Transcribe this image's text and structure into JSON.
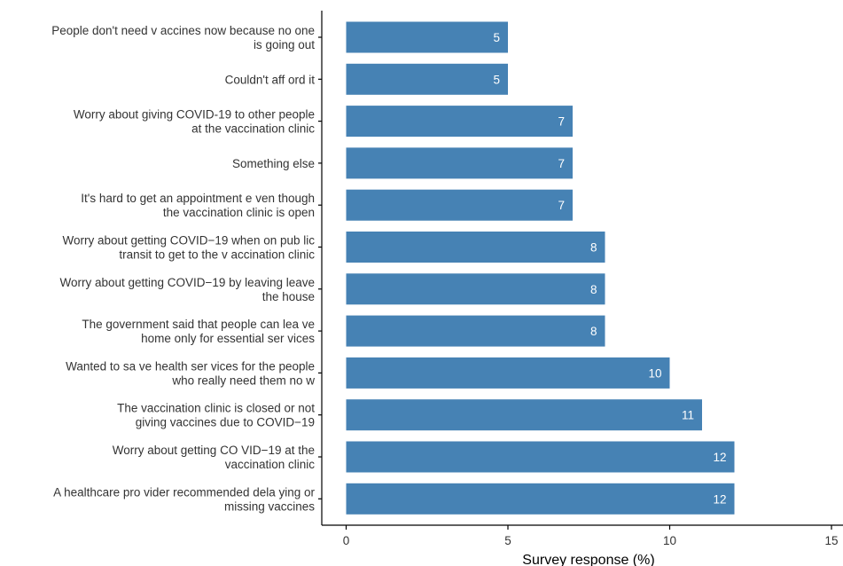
{
  "chart_data": {
    "type": "bar",
    "orientation": "horizontal",
    "categories": [
      [
        "People don't need v accines now because no one",
        "is going out"
      ],
      [
        "Couldn't aff ord it"
      ],
      [
        "Worry about giving COVID-19 to other people",
        "at the vaccination clinic"
      ],
      [
        "Something else"
      ],
      [
        "It's hard to get an appointment e ven though",
        "the vaccination clinic is open"
      ],
      [
        "Worry about getting COVID−19 when on pub lic",
        "transit to get to the v accination clinic"
      ],
      [
        "Worry about getting COVID−19 by leaving leave",
        "the house"
      ],
      [
        "The government said that people can lea ve",
        "home only for essential ser vices"
      ],
      [
        "Wanted to sa ve health ser vices for the people",
        "who really need them no w"
      ],
      [
        "The vaccination clinic is closed or not",
        "giving vaccines due to COVID−19"
      ],
      [
        "Worry about getting CO VID−19 at the",
        "vaccination clinic"
      ],
      [
        "A healthcare pro vider recommended dela ying or",
        "missing vaccines"
      ]
    ],
    "values": [
      5,
      5,
      7,
      7,
      7,
      8,
      8,
      8,
      10,
      11,
      12,
      12
    ],
    "value_labels": [
      "5",
      "5",
      "7",
      "7",
      "7",
      "8",
      "8",
      "8",
      "10",
      "11",
      "12",
      "12"
    ],
    "xlabel": "Survey response (%)",
    "ylabel": "",
    "xlim": [
      0,
      15
    ],
    "xticks": [
      0,
      5,
      10,
      15
    ],
    "xtick_labels": [
      "0",
      "5",
      "10",
      "15"
    ],
    "grid": false,
    "bar_color": "#4682B4",
    "value_label_color": "#ffffff"
  }
}
